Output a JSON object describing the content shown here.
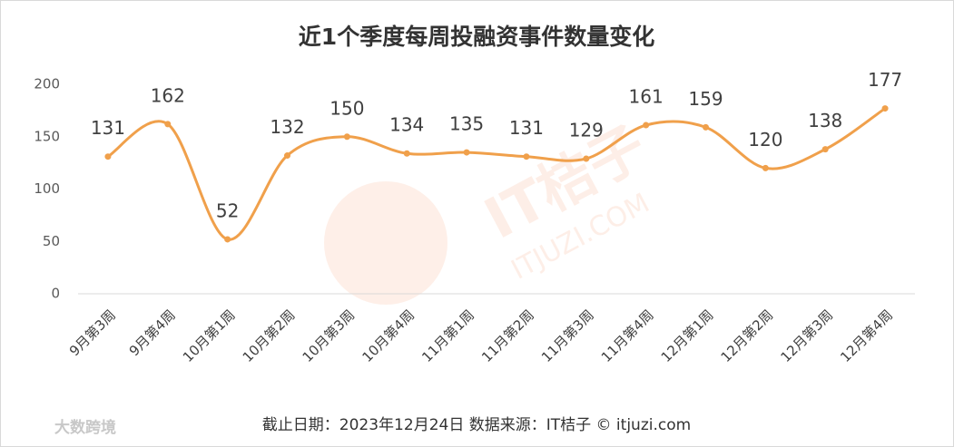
{
  "chart_data": {
    "type": "line",
    "title": "近1个季度每周投融资事件数量变化",
    "categories": [
      "9月第3周",
      "9月第4周",
      "10月第1周",
      "10月第2周",
      "10月第3周",
      "10月第4周",
      "11月第1周",
      "11月第2周",
      "11月第3周",
      "11月第4周",
      "12月第1周",
      "12月第2周",
      "12月第3周",
      "12月第4周"
    ],
    "values": [
      131,
      162,
      52,
      132,
      150,
      134,
      135,
      131,
      129,
      161,
      159,
      120,
      138,
      177
    ],
    "color": "#f0a04b",
    "ylim": [
      0,
      200
    ],
    "yticks": [
      0,
      50,
      100,
      150,
      200
    ],
    "smooth": true,
    "footnote": "截止日期：2023年12月24日     数据来源：IT桔子 © itjuzi.com",
    "watermark": "IT桔子",
    "watermark_url": "ITJUZI.COM",
    "corner_logo": "大数跨境"
  }
}
